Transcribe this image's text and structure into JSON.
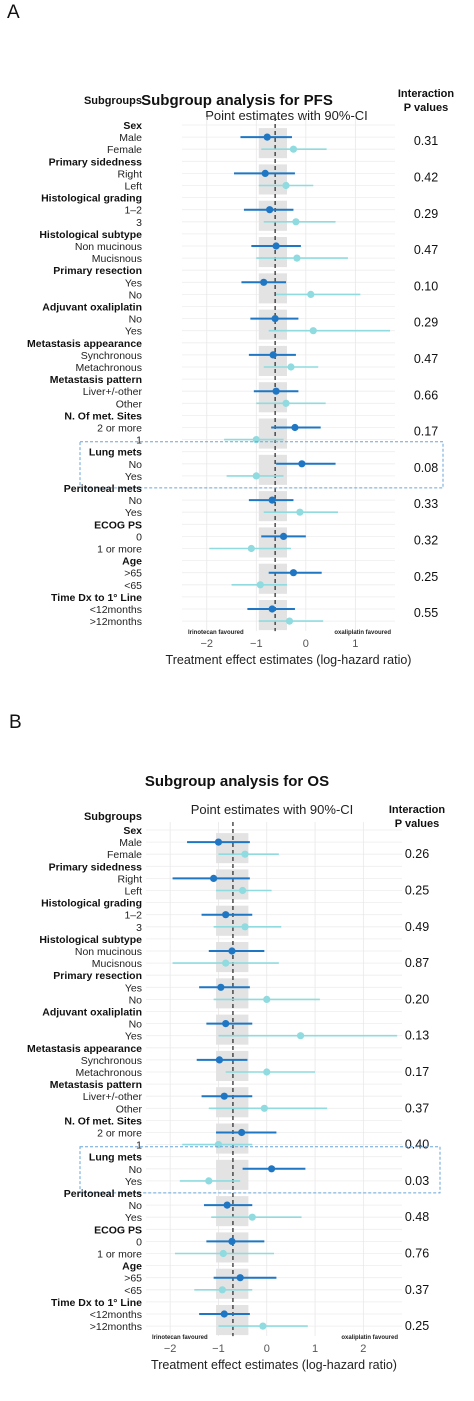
{
  "panels": [
    {
      "letter": "A",
      "chart_data": {
        "type": "forest",
        "title": "Subgroup analysis for PFS",
        "subtitle": "Point estimates with 90%-CI",
        "left_header": "Subgroups",
        "right_header": [
          "Interaction",
          "P values"
        ],
        "xlabel": "Treatment effect estimates (log-hazard ratio)",
        "x_ticks": [
          -2,
          -1,
          0,
          1
        ],
        "tick_labels": [
          "−2",
          "−1",
          "0",
          "1"
        ],
        "xlim": [
          -2.5,
          1.8
        ],
        "overall_estimate": -0.62,
        "overall_band": [
          -0.95,
          -0.38
        ],
        "left_note": "Irinotecan favoured",
        "right_note": "oxaliplatin favoured",
        "series": [
          {
            "name": "Level 1",
            "color": "#1f77c4"
          },
          {
            "name": "Level 2",
            "color": "#8fdbdf"
          }
        ],
        "highlight_group": "Lung mets",
        "groups": [
          {
            "name": "Sex",
            "p": "0.31",
            "rows": [
              {
                "label": "Male",
                "est": -0.78,
                "lo": -1.32,
                "hi": -0.28
              },
              {
                "label": "Female",
                "est": -0.25,
                "lo": -0.9,
                "hi": 0.42
              }
            ]
          },
          {
            "name": "Primary sidedness",
            "p": "0.42",
            "rows": [
              {
                "label": "Right",
                "est": -0.82,
                "lo": -1.45,
                "hi": -0.22
              },
              {
                "label": "Left",
                "est": -0.4,
                "lo": -0.95,
                "hi": 0.15
              }
            ]
          },
          {
            "name": "Histological grading",
            "p": "0.29",
            "rows": [
              {
                "label": "1–2",
                "est": -0.73,
                "lo": -1.25,
                "hi": -0.25
              },
              {
                "label": "3",
                "est": -0.2,
                "lo": -0.85,
                "hi": 0.6
              }
            ]
          },
          {
            "name": "Histological subtype",
            "p": "0.47",
            "rows": [
              {
                "label": "Non mucinous",
                "est": -0.6,
                "lo": -1.1,
                "hi": -0.1
              },
              {
                "label": "Mucisnous",
                "est": -0.18,
                "lo": -1.0,
                "hi": 0.85
              }
            ]
          },
          {
            "name": "Primary resection",
            "p": "0.10",
            "rows": [
              {
                "label": "Yes",
                "est": -0.85,
                "lo": -1.3,
                "hi": -0.4
              },
              {
                "label": "No",
                "est": 0.1,
                "lo": -0.6,
                "hi": 1.1
              }
            ]
          },
          {
            "name": "Adjuvant oxaliplatin",
            "p": "0.29",
            "rows": [
              {
                "label": "No",
                "est": -0.62,
                "lo": -1.12,
                "hi": -0.15
              },
              {
                "label": "Yes",
                "est": 0.15,
                "lo": -0.75,
                "hi": 1.7
              }
            ]
          },
          {
            "name": "Metastasis appearance",
            "p": "0.47",
            "rows": [
              {
                "label": "Synchronous",
                "est": -0.66,
                "lo": -1.15,
                "hi": -0.2
              },
              {
                "label": "Metachronous",
                "est": -0.3,
                "lo": -0.85,
                "hi": 0.25
              }
            ]
          },
          {
            "name": "Metastasis pattern",
            "p": "0.66",
            "rows": [
              {
                "label": "Liver+/-other",
                "est": -0.6,
                "lo": -1.05,
                "hi": -0.15
              },
              {
                "label": "Other",
                "est": -0.4,
                "lo": -1.0,
                "hi": 0.4
              }
            ]
          },
          {
            "name": "N. Of met. Sites",
            "p": "0.17",
            "rows": [
              {
                "label": "2 or more",
                "est": -0.22,
                "lo": -0.7,
                "hi": 0.3
              },
              {
                "label": "1",
                "est": -1.0,
                "lo": -1.65,
                "hi": -0.45
              }
            ]
          },
          {
            "name": "Lung mets",
            "p": "0.08",
            "rows": [
              {
                "label": "No",
                "est": -0.08,
                "lo": -0.6,
                "hi": 0.6
              },
              {
                "label": "Yes",
                "est": -1.0,
                "lo": -1.6,
                "hi": -0.45
              }
            ]
          },
          {
            "name": "Peritoneal mets",
            "p": "0.33",
            "rows": [
              {
                "label": "No",
                "est": -0.68,
                "lo": -1.15,
                "hi": -0.25
              },
              {
                "label": "Yes",
                "est": -0.12,
                "lo": -0.85,
                "hi": 0.65
              }
            ]
          },
          {
            "name": "ECOG PS",
            "p": "0.32",
            "rows": [
              {
                "label": "0",
                "est": -0.45,
                "lo": -0.9,
                "hi": 0.0
              },
              {
                "label": "1 or more",
                "est": -1.1,
                "lo": -1.95,
                "hi": -0.3
              }
            ]
          },
          {
            "name": "Age",
            "p": "0.25",
            "rows": [
              {
                "label": ">65",
                "est": -0.25,
                "lo": -0.75,
                "hi": 0.32
              },
              {
                "label": "<65",
                "est": -0.92,
                "lo": -1.5,
                "hi": -0.38
              }
            ]
          },
          {
            "name": "Time Dx to 1° Line",
            "p": "0.55",
            "rows": [
              {
                "label": "<12months",
                "est": -0.68,
                "lo": -1.18,
                "hi": -0.22
              },
              {
                "label": ">12months",
                "est": -0.33,
                "lo": -0.95,
                "hi": 0.35
              }
            ]
          }
        ]
      }
    },
    {
      "letter": "B",
      "chart_data": {
        "type": "forest",
        "title": "Subgroup analysis for OS",
        "subtitle": "Point estimates with 90%-CI",
        "left_header": "Subgroups",
        "right_header": [
          "Interaction",
          "P values"
        ],
        "xlabel": "Treatment effect estimates (log-hazard ratio)",
        "x_ticks": [
          -2,
          -1,
          0,
          1,
          2
        ],
        "tick_labels": [
          "−2",
          "−1",
          "0",
          "1",
          "2"
        ],
        "xlim": [
          -2.5,
          2.8
        ],
        "overall_estimate": -0.7,
        "overall_band": [
          -1.05,
          -0.38
        ],
        "left_note": "Irinotecan favoured",
        "right_note": "oxaliplatin favoured",
        "series": [
          {
            "name": "Level 1",
            "color": "#1f77c4"
          },
          {
            "name": "Level 2",
            "color": "#8fdbdf"
          }
        ],
        "highlight_group": "Lung mets",
        "groups": [
          {
            "name": "Sex",
            "p": "0.26",
            "rows": [
              {
                "label": "Male",
                "est": -1.0,
                "lo": -1.65,
                "hi": -0.35
              },
              {
                "label": "Female",
                "est": -0.45,
                "lo": -1.0,
                "hi": 0.25
              }
            ]
          },
          {
            "name": "Primary sidedness",
            "p": "0.25",
            "rows": [
              {
                "label": "Right",
                "est": -1.1,
                "lo": -1.95,
                "hi": -0.35
              },
              {
                "label": "Left",
                "est": -0.5,
                "lo": -1.05,
                "hi": 0.1
              }
            ]
          },
          {
            "name": "Histological grading",
            "p": "0.49",
            "rows": [
              {
                "label": "1–2",
                "est": -0.85,
                "lo": -1.35,
                "hi": -0.3
              },
              {
                "label": "3",
                "est": -0.45,
                "lo": -1.1,
                "hi": 0.3
              }
            ]
          },
          {
            "name": "Histological subtype",
            "p": "0.87",
            "rows": [
              {
                "label": "Non mucinous",
                "est": -0.72,
                "lo": -1.2,
                "hi": -0.05
              },
              {
                "label": "Mucisnous",
                "est": -0.85,
                "lo": -1.95,
                "hi": 0.25
              }
            ]
          },
          {
            "name": "Primary resection",
            "p": "0.20",
            "rows": [
              {
                "label": "Yes",
                "est": -0.95,
                "lo": -1.4,
                "hi": -0.35
              },
              {
                "label": "No",
                "est": 0.0,
                "lo": -1.1,
                "hi": 1.1
              }
            ]
          },
          {
            "name": "Adjuvant oxaliplatin",
            "p": "0.13",
            "rows": [
              {
                "label": "No",
                "est": -0.85,
                "lo": -1.25,
                "hi": -0.3
              },
              {
                "label": "Yes",
                "est": 0.7,
                "lo": -1.0,
                "hi": 2.7
              }
            ]
          },
          {
            "name": "Metastasis appearance",
            "p": "0.17",
            "rows": [
              {
                "label": "Synchronous",
                "est": -0.98,
                "lo": -1.45,
                "hi": -0.4
              },
              {
                "label": "Metachronous",
                "est": 0.0,
                "lo": -0.85,
                "hi": 1.0
              }
            ]
          },
          {
            "name": "Metastasis pattern",
            "p": "0.37",
            "rows": [
              {
                "label": "Liver+/-other",
                "est": -0.88,
                "lo": -1.35,
                "hi": -0.3
              },
              {
                "label": "Other",
                "est": -0.05,
                "lo": -1.2,
                "hi": 1.25
              }
            ]
          },
          {
            "name": "N. Of met. Sites",
            "p": "0.40",
            "rows": [
              {
                "label": "2 or more",
                "est": -0.52,
                "lo": -1.05,
                "hi": 0.2
              },
              {
                "label": "1",
                "est": -1.0,
                "lo": -1.75,
                "hi": -0.3
              }
            ]
          },
          {
            "name": "Lung mets",
            "p": "0.03",
            "rows": [
              {
                "label": "No",
                "est": 0.1,
                "lo": -0.5,
                "hi": 0.8
              },
              {
                "label": "Yes",
                "est": -1.2,
                "lo": -1.8,
                "hi": -0.55
              }
            ]
          },
          {
            "name": "Peritoneal mets",
            "p": "0.48",
            "rows": [
              {
                "label": "No",
                "est": -0.82,
                "lo": -1.3,
                "hi": -0.3
              },
              {
                "label": "Yes",
                "est": -0.3,
                "lo": -1.15,
                "hi": 0.72
              }
            ]
          },
          {
            "name": "ECOG PS",
            "p": "0.76",
            "rows": [
              {
                "label": "0",
                "est": -0.72,
                "lo": -1.25,
                "hi": -0.05
              },
              {
                "label": "1 or more",
                "est": -0.9,
                "lo": -1.9,
                "hi": 0.15
              }
            ]
          },
          {
            "name": "Age",
            "p": "0.37",
            "rows": [
              {
                "label": ">65",
                "est": -0.55,
                "lo": -1.1,
                "hi": 0.2
              },
              {
                "label": "<65",
                "est": -0.92,
                "lo": -1.5,
                "hi": -0.3
              }
            ]
          },
          {
            "name": "Time Dx to 1° Line",
            "p": "0.25",
            "rows": [
              {
                "label": "<12months",
                "est": -0.88,
                "lo": -1.4,
                "hi": -0.35
              },
              {
                "label": ">12months",
                "est": -0.08,
                "lo": -1.0,
                "hi": 0.85
              }
            ]
          }
        ]
      }
    }
  ]
}
